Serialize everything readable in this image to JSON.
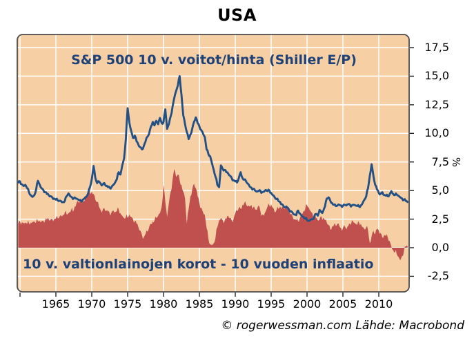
{
  "title": "USA",
  "annotations": {
    "line_label": "S&P 500 10 v. voitot/hinta (Shiller E/P)",
    "area_label": "10 v. valtionlainojen korot - 10 vuoden inflaatio"
  },
  "footer": "© rogerwessman.com Lähde: Macrobond",
  "y_axis": {
    "unit_label": "%",
    "tick_labels": [
      "17,5",
      "15,0",
      "12,5",
      "10,0",
      "7,5",
      "5,0",
      "2,5",
      "0,0",
      "-2,5"
    ],
    "tick_values": [
      17.5,
      15.0,
      12.5,
      10.0,
      7.5,
      5.0,
      2.5,
      0.0,
      -2.5
    ]
  },
  "x_axis": {
    "tick_labels": [
      "1965",
      "1970",
      "1975",
      "1980",
      "1985",
      "1990",
      "1995",
      "2000",
      "2005",
      "2010"
    ],
    "tick_values": [
      1965,
      1970,
      1975,
      1980,
      1985,
      1990,
      1995,
      2000,
      2005,
      2010
    ],
    "minor_tick_values": [
      1960,
      1965,
      1970,
      1975,
      1980,
      1985,
      1990,
      1995,
      2000,
      2005,
      2010
    ]
  },
  "colors": {
    "plot_background": "#f7cfa5",
    "grid": "#ffffff",
    "line_series": "#235186",
    "area_series": "#c0504e",
    "annotation_text": "#1e4278",
    "border": "#4b4b4b",
    "axis_text": "#000000"
  },
  "chart_data": {
    "type": "area",
    "subtype": "line-over-area",
    "x_start": 1959.75,
    "x_step": 0.25,
    "x_range_displayed": [
      1959.6,
      2014.25
    ],
    "ylim_displayed": [
      -3.85,
      18.65
    ],
    "gridline_range": [
      -2.5,
      17.5
    ],
    "grid": true,
    "legend_position": "in-plot-text-labels",
    "series": [
      {
        "name": "S&P 500 10 v. voitot/hinta (Shiller E/P)",
        "type": "line",
        "values": [
          5.7,
          5.8,
          5.55,
          5.4,
          5.5,
          5.2,
          4.85,
          4.6,
          4.45,
          4.6,
          5.1,
          5.85,
          5.5,
          5.2,
          5.05,
          4.85,
          4.7,
          4.6,
          4.5,
          4.4,
          4.3,
          4.2,
          4.15,
          4.1,
          4.05,
          4.0,
          4.1,
          4.5,
          4.75,
          4.5,
          4.4,
          4.35,
          4.3,
          4.25,
          4.15,
          4.1,
          4.2,
          4.3,
          4.45,
          4.75,
          5.3,
          6.0,
          7.15,
          6.1,
          5.65,
          5.8,
          5.6,
          5.5,
          5.65,
          5.4,
          5.3,
          5.25,
          5.3,
          5.5,
          5.7,
          6.0,
          6.6,
          6.4,
          7.2,
          7.8,
          9.5,
          12.2,
          10.9,
          10.2,
          9.6,
          9.8,
          9.3,
          9.0,
          8.8,
          8.6,
          8.9,
          9.3,
          9.7,
          10.0,
          10.6,
          11.0,
          10.7,
          11.1,
          10.8,
          11.35,
          10.9,
          11.0,
          12.1,
          10.4,
          10.8,
          11.5,
          12.3,
          13.1,
          13.7,
          14.2,
          15.0,
          13.4,
          11.6,
          10.8,
          10.1,
          9.5,
          9.9,
          10.4,
          11.0,
          11.4,
          10.9,
          10.6,
          10.3,
          10.0,
          9.7,
          8.6,
          8.2,
          8.0,
          7.4,
          6.8,
          6.2,
          5.5,
          5.3,
          7.2,
          6.9,
          6.8,
          6.6,
          6.5,
          6.3,
          6.1,
          5.9,
          5.8,
          5.7,
          6.1,
          6.6,
          6.1,
          5.95,
          5.8,
          5.6,
          5.35,
          5.25,
          5.15,
          5.0,
          4.9,
          4.95,
          5.0,
          4.85,
          4.9,
          5.05,
          4.95,
          5.0,
          4.8,
          4.6,
          4.4,
          4.25,
          4.1,
          4.0,
          3.8,
          3.6,
          3.55,
          3.5,
          3.3,
          3.2,
          3.05,
          2.9,
          2.85,
          3.25,
          3.0,
          2.8,
          2.7,
          2.55,
          2.4,
          2.35,
          2.45,
          2.5,
          2.7,
          2.95,
          2.8,
          3.3,
          3.1,
          3.2,
          3.6,
          4.3,
          4.4,
          4.1,
          3.9,
          3.75,
          3.65,
          3.7,
          3.75,
          3.7,
          3.65,
          3.75,
          3.7,
          3.8,
          3.75,
          3.7,
          3.75,
          3.7,
          3.65,
          3.6,
          3.7,
          3.9,
          4.2,
          4.5,
          5.2,
          6.3,
          7.3,
          6.3,
          5.5,
          5.1,
          4.8,
          4.7,
          4.85,
          4.6,
          4.55,
          4.5,
          4.65,
          4.95,
          4.7,
          4.6,
          4.65,
          4.55,
          4.4,
          4.3,
          4.2,
          4.1,
          4.0
        ]
      },
      {
        "name": "10 v. valtionlainojen korot - 10 vuoden inflaatio",
        "type": "area",
        "baseline": 0,
        "values": [
          2.1,
          2.3,
          2.2,
          2.15,
          2.2,
          2.1,
          2.15,
          2.2,
          2.25,
          2.3,
          2.25,
          2.3,
          2.35,
          2.3,
          2.35,
          2.4,
          2.45,
          2.5,
          2.45,
          2.5,
          2.5,
          2.55,
          2.6,
          2.7,
          2.8,
          2.9,
          3.1,
          2.9,
          3.0,
          3.1,
          3.5,
          3.3,
          3.6,
          4.1,
          3.9,
          4.3,
          4.0,
          4.1,
          4.6,
          4.7,
          4.8,
          4.95,
          4.7,
          4.2,
          4.0,
          3.6,
          3.3,
          3.25,
          3.45,
          3.2,
          3.15,
          3.0,
          3.1,
          3.25,
          3.1,
          3.2,
          3.35,
          3.0,
          2.8,
          2.6,
          2.7,
          2.6,
          2.9,
          2.7,
          2.5,
          2.3,
          2.1,
          1.8,
          1.5,
          1.1,
          0.9,
          1.2,
          1.4,
          1.8,
          2.1,
          2.3,
          2.4,
          2.6,
          2.8,
          3.0,
          3.6,
          5.5,
          4.0,
          2.7,
          3.9,
          4.9,
          5.9,
          6.9,
          6.2,
          6.4,
          5.9,
          5.5,
          4.9,
          4.3,
          2.1,
          3.4,
          4.5,
          5.1,
          5.6,
          5.2,
          4.5,
          3.9,
          3.5,
          3.1,
          2.9,
          1.7,
          0.8,
          0.3,
          0.25,
          0.4,
          0.9,
          1.8,
          2.4,
          2.6,
          2.4,
          2.3,
          2.5,
          2.8,
          2.6,
          2.4,
          2.5,
          3.0,
          3.2,
          3.5,
          3.4,
          3.75,
          3.9,
          3.8,
          3.6,
          3.6,
          3.75,
          3.55,
          3.35,
          3.3,
          3.7,
          3.2,
          2.9,
          2.8,
          3.2,
          3.6,
          3.7,
          3.8,
          3.5,
          3.1,
          3.3,
          3.4,
          3.6,
          3.55,
          3.45,
          3.5,
          3.4,
          3.2,
          3.0,
          2.7,
          2.5,
          2.4,
          2.3,
          2.6,
          2.9,
          3.2,
          3.4,
          3.7,
          3.5,
          3.2,
          3.0,
          2.8,
          2.6,
          2.4,
          2.5,
          2.75,
          2.6,
          2.4,
          2.2,
          2.0,
          1.6,
          1.9,
          2.0,
          1.9,
          2.1,
          1.9,
          1.7,
          1.7,
          1.9,
          1.6,
          1.9,
          2.1,
          2.4,
          2.2,
          2.1,
          2.0,
          2.2,
          2.1,
          1.8,
          1.6,
          1.8,
          1.5,
          0.4,
          1.0,
          1.5,
          1.2,
          1.6,
          1.5,
          1.3,
          0.9,
          1.1,
          1.0,
          0.9,
          0.6,
          0.1,
          -0.2,
          -0.4,
          -0.55,
          -0.8,
          -1.1,
          -0.7,
          -0.3,
          0.1,
          0.15
        ]
      }
    ]
  }
}
